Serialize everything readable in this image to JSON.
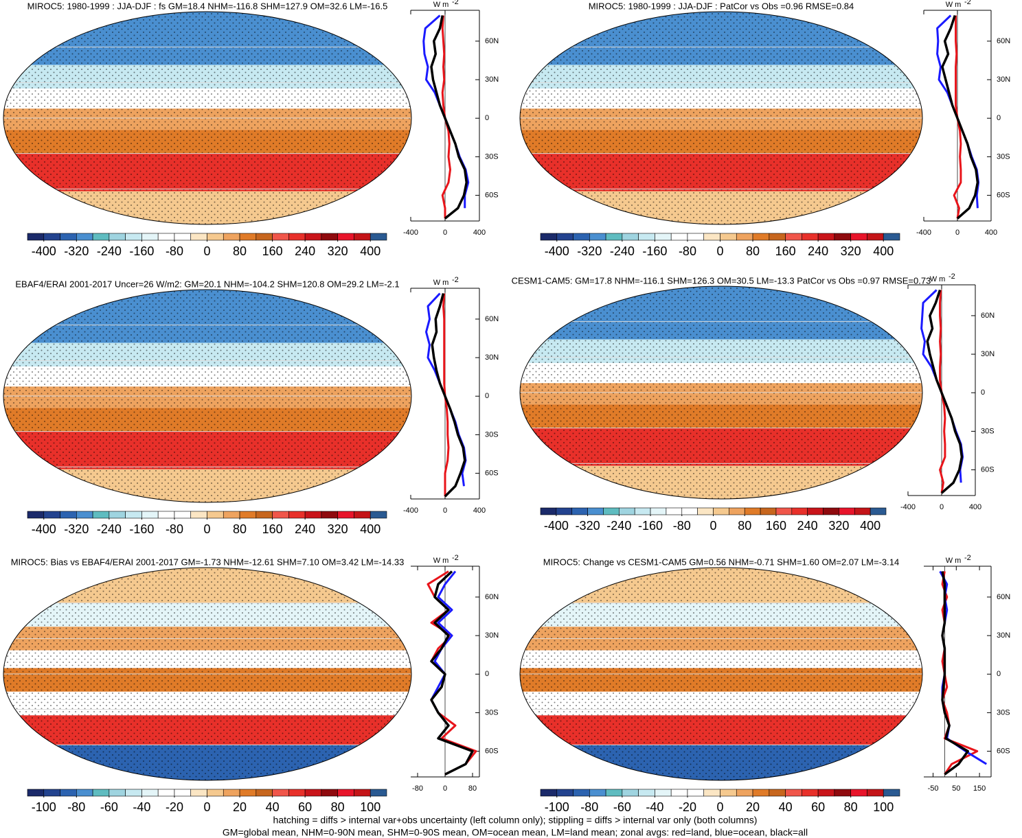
{
  "colorbar_colors": [
    "#1b2a6a",
    "#23438f",
    "#2c63b0",
    "#4a8fd0",
    "#5fbcc0",
    "#9fd4e0",
    "#c7e9f1",
    "#e4f5f8",
    "#ffffff",
    "#ffffff",
    "#fbe6c4",
    "#f5c98f",
    "#eea35f",
    "#e07b28",
    "#c7661e",
    "#f0564a",
    "#e8302a",
    "#c9141a",
    "#8f0a0e",
    "#e8142a",
    "#c41418",
    "#2a5a92"
  ],
  "notes": [
    "hatching = diffs > internal var+obs uncertainty (left column only); stippling = diffs > internal var only (both columns)",
    "GM=global mean, NHM=0-90N mean, SHM=0-90S mean, OM=ocean mean, LM=land mean; zonal avgs: red=land, blue=ocean, black=all"
  ],
  "chart_data": [
    {
      "type": "map_zonal",
      "title": "MIROC5: 1980-1999 : JJA-DJF : fs GM=18.4 NHM=-116.8 SHM=127.9 OM=32.6 LM=-16.5",
      "cbar_lim": [
        -440,
        440
      ],
      "cbar_ticks": [
        -400,
        -320,
        -240,
        -160,
        -80,
        0,
        80,
        160,
        240,
        320,
        400
      ],
      "xlabel": "W m",
      "xlabel_sup": "-2",
      "xlim": [
        -400,
        400
      ],
      "xticks": [
        -400,
        0,
        400
      ],
      "ylim": [
        -80,
        84
      ],
      "yticks": [
        {
          "value": 60,
          "label": "60N"
        },
        {
          "value": 30,
          "label": "30N"
        },
        {
          "value": 0,
          "label": "0"
        },
        {
          "value": -30,
          "label": "30S"
        },
        {
          "value": -60,
          "label": "60S"
        }
      ],
      "lat": [
        80,
        70,
        60,
        50,
        40,
        30,
        20,
        10,
        0,
        -10,
        -20,
        -30,
        -40,
        -50,
        -60,
        -70,
        -78
      ],
      "series": [
        {
          "name": "land",
          "color": "#e8141a",
          "values": [
            -20,
            -30,
            -20,
            -10,
            -20,
            -10,
            -30,
            -20,
            0,
            40,
            50,
            40,
            60,
            40,
            -30,
            0,
            0
          ]
        },
        {
          "name": "ocean",
          "color": "#1a1aff",
          "values": [
            -60,
            -230,
            -250,
            -240,
            -200,
            -220,
            -120,
            -60,
            0,
            60,
            120,
            170,
            240,
            270,
            230,
            230,
            null
          ]
        },
        {
          "name": "all",
          "color": "#000000",
          "values": [
            -30,
            -60,
            -130,
            -110,
            -160,
            -140,
            -100,
            -60,
            0,
            60,
            120,
            160,
            230,
            250,
            220,
            150,
            0
          ]
        }
      ]
    },
    {
      "type": "map_zonal",
      "title": "MIROC5: 1980-1999 : JJA-DJF : PatCor vs Obs =0.96 RMSE=0.84",
      "cbar_lim": [
        -440,
        440
      ],
      "cbar_ticks": [
        -400,
        -320,
        -240,
        -160,
        -80,
        0,
        80,
        160,
        240,
        320,
        400
      ],
      "xlabel": "W m",
      "xlabel_sup": "-2",
      "xlim": [
        -400,
        400
      ],
      "xticks": [
        -400,
        0,
        400
      ],
      "ylim": [
        -80,
        84
      ],
      "yticks": [
        {
          "value": 60,
          "label": "60N"
        },
        {
          "value": 30,
          "label": "30N"
        },
        {
          "value": 0,
          "label": "0"
        },
        {
          "value": -30,
          "label": "30S"
        },
        {
          "value": -60,
          "label": "60S"
        }
      ],
      "lat": [
        80,
        70,
        60,
        50,
        40,
        30,
        20,
        10,
        0,
        -10,
        -20,
        -30,
        -40,
        -50,
        -60,
        -70,
        -78
      ],
      "series": [
        {
          "name": "land",
          "color": "#e8141a",
          "values": [
            -20,
            -20,
            -20,
            -10,
            -20,
            -20,
            -20,
            -20,
            0,
            30,
            40,
            30,
            40,
            40,
            -40,
            20,
            0
          ]
        },
        {
          "name": "ocean",
          "color": "#1a1aff",
          "values": [
            -80,
            -240,
            -230,
            -240,
            -200,
            -220,
            -120,
            -60,
            0,
            60,
            120,
            170,
            230,
            250,
            230,
            240,
            null
          ]
        },
        {
          "name": "all",
          "color": "#000000",
          "values": [
            -30,
            -80,
            -150,
            -110,
            -180,
            -140,
            -100,
            -60,
            0,
            60,
            120,
            160,
            220,
            240,
            210,
            140,
            0
          ]
        }
      ]
    },
    {
      "type": "map_zonal",
      "title": "EBAF4/ERAI 2001-2017 Uncer=26 W/m2: GM=20.1 NHM=-104.2 SHM=120.8 OM=29.2 LM=-2.1",
      "cbar_lim": [
        -440,
        440
      ],
      "cbar_ticks": [
        -400,
        -320,
        -240,
        -160,
        -80,
        0,
        80,
        160,
        240,
        320,
        400
      ],
      "xlabel": "W m",
      "xlabel_sup": "-2",
      "xlim": [
        -400,
        400
      ],
      "xticks": [
        -400,
        0,
        400
      ],
      "ylim": [
        -80,
        84
      ],
      "yticks": [
        {
          "value": 60,
          "label": "60N"
        },
        {
          "value": 30,
          "label": "30N"
        },
        {
          "value": 0,
          "label": "0"
        },
        {
          "value": -30,
          "label": "30S"
        },
        {
          "value": -60,
          "label": "60S"
        }
      ],
      "lat": [
        80,
        70,
        60,
        50,
        40,
        30,
        20,
        10,
        0,
        -10,
        -20,
        -30,
        -40,
        -50,
        -60,
        -70,
        -78
      ],
      "series": [
        {
          "name": "land",
          "color": "#e8141a",
          "values": [
            -10,
            -20,
            -10,
            -10,
            -10,
            -10,
            -10,
            -10,
            0,
            20,
            30,
            30,
            40,
            30,
            0,
            0,
            0
          ]
        },
        {
          "name": "ocean",
          "color": "#1a1aff",
          "values": [
            -60,
            -200,
            -180,
            -220,
            -180,
            -200,
            -120,
            -60,
            0,
            60,
            120,
            160,
            220,
            240,
            200,
            220,
            null
          ]
        },
        {
          "name": "all",
          "color": "#000000",
          "values": [
            -20,
            -60,
            -110,
            -100,
            -150,
            -130,
            -100,
            -60,
            0,
            60,
            110,
            150,
            210,
            230,
            180,
            120,
            0
          ]
        }
      ]
    },
    {
      "type": "map_zonal",
      "title": "CESM1-CAM5: GM=17.8 NHM=-116.1 SHM=126.3 OM=30.5 LM=-13.3 PatCor vs Obs =0.97 RMSE=0.73",
      "cbar_lim": [
        -440,
        440
      ],
      "cbar_ticks": [
        -400,
        -320,
        -240,
        -160,
        -80,
        0,
        80,
        160,
        240,
        320,
        400
      ],
      "xlabel": "W m",
      "xlabel_sup": "-2",
      "xlim": [
        -400,
        400
      ],
      "xticks": [
        -400,
        0,
        400
      ],
      "ylim": [
        -80,
        84
      ],
      "yticks": [
        {
          "value": 60,
          "label": "60N"
        },
        {
          "value": 30,
          "label": "30N"
        },
        {
          "value": 0,
          "label": "0"
        },
        {
          "value": -30,
          "label": "30S"
        },
        {
          "value": -60,
          "label": "60S"
        }
      ],
      "lat": [
        80,
        70,
        60,
        50,
        40,
        30,
        20,
        10,
        0,
        -10,
        -20,
        -30,
        -40,
        -50,
        -60,
        -70,
        -78
      ],
      "series": [
        {
          "name": "land",
          "color": "#e8141a",
          "values": [
            -10,
            -20,
            -20,
            -10,
            -20,
            -10,
            -20,
            -20,
            0,
            30,
            40,
            30,
            40,
            40,
            -20,
            20,
            0
          ]
        },
        {
          "name": "ocean",
          "color": "#1a1aff",
          "values": [
            -60,
            -220,
            -230,
            -240,
            -200,
            -220,
            -120,
            -60,
            0,
            60,
            120,
            170,
            230,
            250,
            220,
            230,
            null
          ]
        },
        {
          "name": "all",
          "color": "#000000",
          "values": [
            -20,
            -70,
            -140,
            -110,
            -170,
            -140,
            -100,
            -60,
            0,
            60,
            120,
            160,
            220,
            240,
            210,
            140,
            0
          ]
        }
      ]
    },
    {
      "type": "map_zonal",
      "title": "MIROC5: Bias vs EBAF4/ERAI 2001-2017 GM=-1.73 NHM=-12.61 SHM=7.10 OM=3.42 LM=-14.33",
      "cbar_lim": [
        -110,
        110
      ],
      "cbar_ticks": [
        -100,
        -80,
        -60,
        -40,
        -20,
        0,
        20,
        40,
        60,
        80,
        100
      ],
      "xlabel": "W m",
      "xlabel_sup": "-2",
      "xlim": [
        -100,
        100
      ],
      "xticks": [
        -80,
        0,
        80
      ],
      "ylim": [
        -80,
        84
      ],
      "yticks": [
        {
          "value": 60,
          "label": "60N"
        },
        {
          "value": 30,
          "label": "30N"
        },
        {
          "value": 0,
          "label": "0"
        },
        {
          "value": -30,
          "label": "30S"
        },
        {
          "value": -60,
          "label": "60S"
        }
      ],
      "lat": [
        80,
        70,
        60,
        50,
        40,
        30,
        20,
        10,
        0,
        -10,
        -20,
        -30,
        -40,
        -50,
        -60,
        -70,
        -78
      ],
      "series": [
        {
          "name": "land",
          "color": "#e8141a",
          "values": [
            10,
            -50,
            -30,
            10,
            -40,
            20,
            -20,
            -40,
            0,
            -10,
            -40,
            -20,
            30,
            -10,
            90,
            60,
            0
          ]
        },
        {
          "name": "ocean",
          "color": "#1a1aff",
          "values": [
            30,
            0,
            -20,
            20,
            -20,
            20,
            -10,
            -30,
            0,
            -20,
            -40,
            -20,
            10,
            -20,
            80,
            60,
            null
          ]
        },
        {
          "name": "all",
          "color": "#000000",
          "values": [
            20,
            -20,
            -30,
            10,
            -30,
            10,
            -10,
            -40,
            0,
            -10,
            -40,
            -20,
            10,
            -20,
            80,
            60,
            0
          ]
        }
      ]
    },
    {
      "type": "map_zonal",
      "title": "MIROC5: Change vs CESM1-CAM5 GM=0.56 NHM=-0.71 SHM=1.60 OM=2.07 LM=-3.14",
      "cbar_lim": [
        -110,
        110
      ],
      "cbar_ticks": [
        -100,
        -80,
        -60,
        -40,
        -20,
        0,
        20,
        40,
        60,
        80,
        100
      ],
      "xlabel": "W m",
      "xlabel_sup": "-2",
      "xlim": [
        -90,
        200
      ],
      "xticks": [
        -50,
        50,
        150
      ],
      "ylim": [
        -80,
        84
      ],
      "yticks": [
        {
          "value": 60,
          "label": "60N"
        },
        {
          "value": 30,
          "label": "30N"
        },
        {
          "value": 0,
          "label": "0"
        },
        {
          "value": -30,
          "label": "30S"
        },
        {
          "value": -60,
          "label": "60S"
        }
      ],
      "lat": [
        80,
        70,
        60,
        50,
        40,
        30,
        20,
        10,
        0,
        -10,
        -20,
        -30,
        -40,
        -50,
        -60,
        -70,
        -78
      ],
      "series": [
        {
          "name": "land",
          "color": "#e8141a",
          "values": [
            0,
            -10,
            10,
            -10,
            0,
            -10,
            0,
            -10,
            0,
            10,
            -10,
            10,
            20,
            0,
            140,
            30,
            0
          ]
        },
        {
          "name": "ocean",
          "color": "#1a1aff",
          "values": [
            -20,
            10,
            0,
            10,
            0,
            -10,
            0,
            0,
            0,
            -10,
            -10,
            0,
            20,
            10,
            90,
            180,
            null
          ]
        },
        {
          "name": "all",
          "color": "#000000",
          "values": [
            -10,
            0,
            0,
            0,
            0,
            -10,
            0,
            0,
            0,
            -5,
            -10,
            0,
            20,
            5,
            100,
            60,
            0
          ]
        }
      ]
    }
  ]
}
